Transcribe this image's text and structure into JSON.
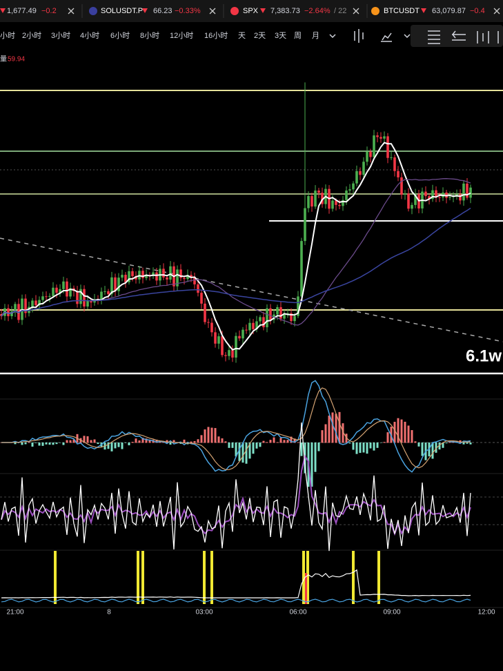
{
  "tickers": [
    {
      "price": "1,677.49",
      "change": "−0.2"
    },
    {
      "symbol": "SOLUSDT.P",
      "price": "66.23",
      "change": "−0.33%"
    },
    {
      "symbol": "SPX",
      "price": "7,383.73",
      "change": "−2.64%",
      "extra": "/ 22"
    },
    {
      "symbol": "BTCUSDT",
      "price": "63,079.87",
      "change": "−0.4"
    }
  ],
  "timeframes": [
    "小时",
    "2小时",
    "3小时",
    "4小时",
    "6小时",
    "8小时",
    "12小时",
    "16小时",
    "天",
    "2天",
    "3天",
    "周",
    "月"
  ],
  "chart": {
    "volume_label": "量",
    "volume_value": "59.94",
    "annotation": "6.1w"
  },
  "time_axis": [
    "21:00",
    "8",
    "03:00",
    "06:00",
    "09:00",
    "12:00"
  ]
}
